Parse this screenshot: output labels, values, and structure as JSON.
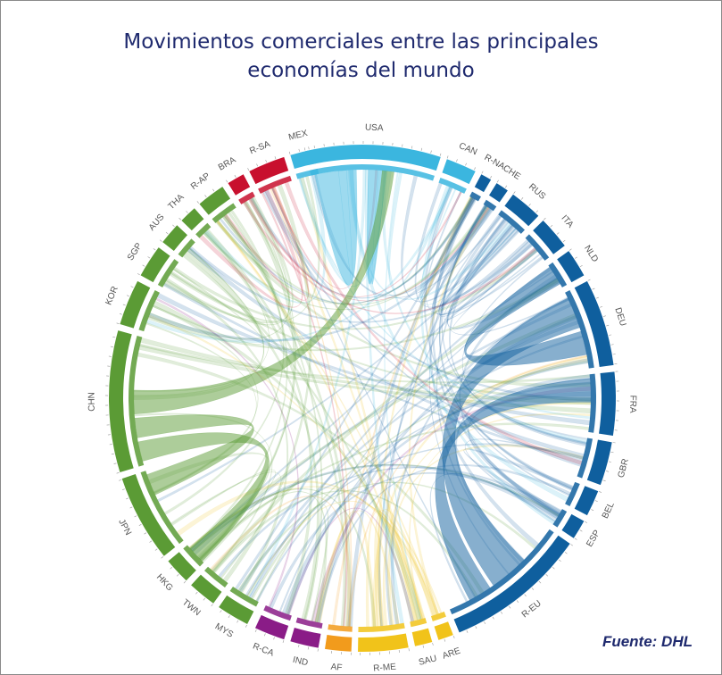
{
  "title": {
    "line1": "Movimientos comerciales entre las principales",
    "line2": "economías del mundo"
  },
  "source": "Fuente: DHL",
  "colors": {
    "title": "#1f2a6e",
    "north_america": "#3bb6df",
    "south_america": "#c8102e",
    "asia_pacific": "#5b9b35",
    "europe": "#0f5f9e",
    "south_central_asia": "#8a1c87",
    "africa": "#f29b1c",
    "middle_east": "#f1c31a"
  },
  "segments": [
    {
      "label": "USA",
      "region": "north_america"
    },
    {
      "label": "CAN",
      "region": "north_america"
    },
    {
      "label": "R-NA",
      "region": "europe"
    },
    {
      "label": "CHE",
      "region": "europe"
    },
    {
      "label": "RUS",
      "region": "europe"
    },
    {
      "label": "ITA",
      "region": "europe"
    },
    {
      "label": "NLD",
      "region": "europe"
    },
    {
      "label": "DEU",
      "region": "europe"
    },
    {
      "label": "FRA",
      "region": "europe"
    },
    {
      "label": "GBR",
      "region": "europe"
    },
    {
      "label": "BEL",
      "region": "europe"
    },
    {
      "label": "ESP",
      "region": "europe"
    },
    {
      "label": "R-EU",
      "region": "europe"
    },
    {
      "label": "ARE",
      "region": "middle_east"
    },
    {
      "label": "SAU",
      "region": "middle_east"
    },
    {
      "label": "R-ME",
      "region": "middle_east"
    },
    {
      "label": "AF",
      "region": "africa"
    },
    {
      "label": "IND",
      "region": "south_central_asia"
    },
    {
      "label": "R-CA",
      "region": "south_central_asia"
    },
    {
      "label": "MYS",
      "region": "asia_pacific"
    },
    {
      "label": "TWN",
      "region": "asia_pacific"
    },
    {
      "label": "HKG",
      "region": "asia_pacific"
    },
    {
      "label": "JPN",
      "region": "asia_pacific"
    },
    {
      "label": "CHN",
      "region": "asia_pacific"
    },
    {
      "label": "KOR",
      "region": "asia_pacific"
    },
    {
      "label": "SGP",
      "region": "asia_pacific"
    },
    {
      "label": "AUS",
      "region": "asia_pacific"
    },
    {
      "label": "THA",
      "region": "asia_pacific"
    },
    {
      "label": "R-AP",
      "region": "asia_pacific"
    },
    {
      "label": "BRA",
      "region": "south_america"
    },
    {
      "label": "R-SA",
      "region": "south_america"
    },
    {
      "label": "MEX",
      "region": "north_america"
    }
  ],
  "highlight_flows": [
    {
      "from": "USA",
      "to": "CAN",
      "region": "north_america"
    },
    {
      "from": "USA",
      "to": "MEX",
      "region": "north_america"
    },
    {
      "from": "CHN",
      "to": "USA",
      "region": "asia_pacific"
    },
    {
      "from": "CHN",
      "to": "HKG",
      "region": "asia_pacific"
    },
    {
      "from": "CHN",
      "to": "JPN",
      "region": "asia_pacific"
    },
    {
      "from": "DEU",
      "to": "R-EU",
      "region": "europe"
    },
    {
      "from": "NLD",
      "to": "DEU",
      "region": "europe"
    },
    {
      "from": "FRA",
      "to": "R-EU",
      "region": "europe"
    }
  ]
}
